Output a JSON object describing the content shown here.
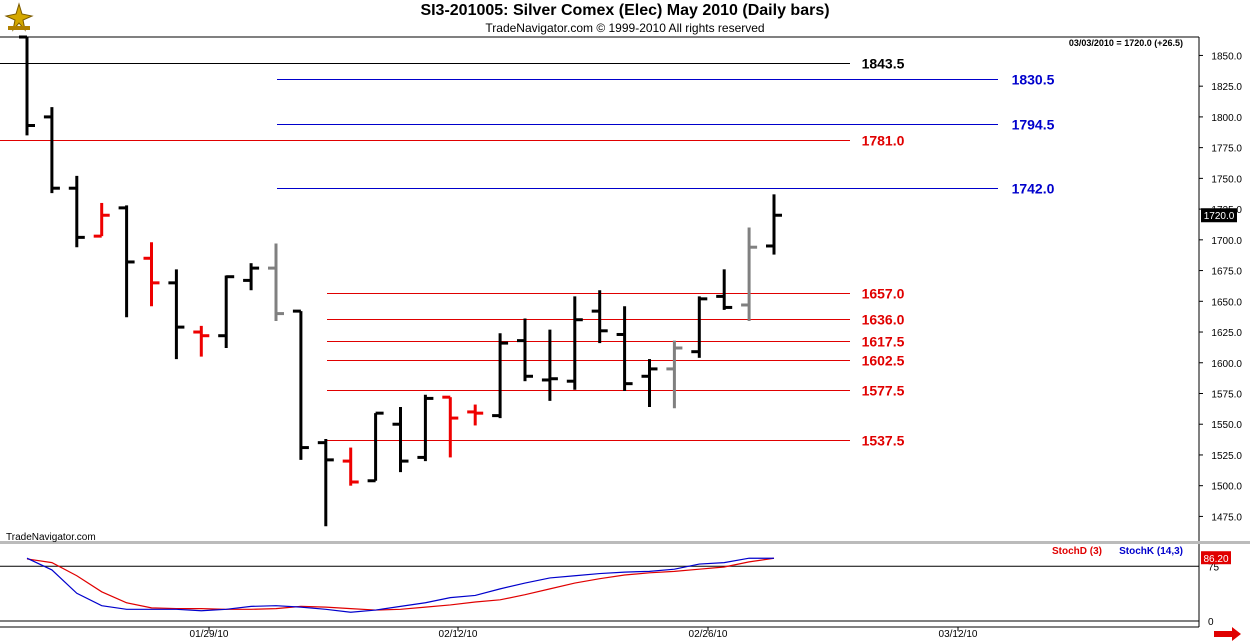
{
  "header": {
    "title": "SI3-201005:  Silver Comex (Elec) May 2010  (Daily bars)",
    "subtitle": "TradeNavigator.com © 1999-2010 All rights reserved"
  },
  "colors": {
    "up": "#000000",
    "down": "#ee0000",
    "neutral": "#808080",
    "support_line": "#e00000",
    "resistance_line": "#0000cc",
    "stochD": "#e00000",
    "stochK": "#0000cc",
    "price_marker_bg": "#000000",
    "stoch_marker_bg": "#e00000"
  },
  "chart_data": [
    {
      "type": "ohlc",
      "price_readout": "03/03/2010 = 1720.0 (+26.5)",
      "watermark": "TradeNavigator.com",
      "ylim": [
        1455,
        1865
      ],
      "y_ticks": [
        1475,
        1500,
        1525,
        1550,
        1575,
        1600,
        1625,
        1650,
        1675,
        1700,
        1725,
        1750,
        1775,
        1800,
        1825,
        1850
      ],
      "y_tick_labels": [
        "1475.0",
        "1500.0",
        "1525.0",
        "1550.0",
        "1575.0",
        "1600.0",
        "1625.0",
        "1650.0",
        "1675.0",
        "1700.0",
        "1725.0",
        "1750.0",
        "1775.0",
        "1800.0",
        "1825.0",
        "1850.0"
      ],
      "last_price_label": "1720.0",
      "x_labels": [
        "01/29/10",
        "02/12/10",
        "02/26/10",
        "03/12/10"
      ],
      "bars": [
        {
          "o": 1865,
          "h": 1865,
          "l": 1785,
          "c": 1793,
          "color": "up"
        },
        {
          "o": 1800,
          "h": 1808,
          "l": 1738,
          "c": 1742,
          "color": "up"
        },
        {
          "o": 1742,
          "h": 1752,
          "l": 1694,
          "c": 1702,
          "color": "up"
        },
        {
          "o": 1703,
          "h": 1730,
          "l": 1703,
          "c": 1720,
          "color": "down"
        },
        {
          "o": 1726,
          "h": 1728,
          "l": 1637,
          "c": 1682,
          "color": "up"
        },
        {
          "o": 1685,
          "h": 1698,
          "l": 1646,
          "c": 1665,
          "color": "down"
        },
        {
          "o": 1665,
          "h": 1676,
          "l": 1603,
          "c": 1629,
          "color": "up"
        },
        {
          "o": 1625,
          "h": 1630,
          "l": 1605,
          "c": 1622,
          "color": "down"
        },
        {
          "o": 1622,
          "h": 1671,
          "l": 1612,
          "c": 1670,
          "color": "up"
        },
        {
          "o": 1667,
          "h": 1681,
          "l": 1659,
          "c": 1677,
          "color": "up"
        },
        {
          "o": 1677,
          "h": 1697,
          "l": 1634,
          "c": 1640,
          "color": "neutral"
        },
        {
          "o": 1642,
          "h": 1642,
          "l": 1521,
          "c": 1531,
          "color": "up"
        },
        {
          "o": 1535,
          "h": 1538,
          "l": 1467,
          "c": 1521,
          "color": "up"
        },
        {
          "o": 1520,
          "h": 1531,
          "l": 1500,
          "c": 1503,
          "color": "down"
        },
        {
          "o": 1504,
          "h": 1559,
          "l": 1504,
          "c": 1559,
          "color": "up"
        },
        {
          "o": 1550,
          "h": 1564,
          "l": 1511,
          "c": 1520,
          "color": "up"
        },
        {
          "o": 1523,
          "h": 1574,
          "l": 1520,
          "c": 1571,
          "color": "up"
        },
        {
          "o": 1572,
          "h": 1572,
          "l": 1523,
          "c": 1555,
          "color": "down"
        },
        {
          "o": 1560,
          "h": 1566,
          "l": 1549,
          "c": 1559,
          "color": "down"
        },
        {
          "o": 1557,
          "h": 1624,
          "l": 1555,
          "c": 1616,
          "color": "up"
        },
        {
          "o": 1618,
          "h": 1636,
          "l": 1585,
          "c": 1589,
          "color": "up"
        },
        {
          "o": 1586,
          "h": 1627,
          "l": 1569,
          "c": 1587,
          "color": "up"
        },
        {
          "o": 1585,
          "h": 1654,
          "l": 1578,
          "c": 1635,
          "color": "up"
        },
        {
          "o": 1642,
          "h": 1659,
          "l": 1616,
          "c": 1626,
          "color": "up"
        },
        {
          "o": 1623,
          "h": 1646,
          "l": 1577,
          "c": 1583,
          "color": "up"
        },
        {
          "o": 1589,
          "h": 1603,
          "l": 1564,
          "c": 1595,
          "color": "up"
        },
        {
          "o": 1595,
          "h": 1618,
          "l": 1563,
          "c": 1612,
          "color": "neutral"
        },
        {
          "o": 1609,
          "h": 1654,
          "l": 1604,
          "c": 1652,
          "color": "up"
        },
        {
          "o": 1654,
          "h": 1676,
          "l": 1643,
          "c": 1645,
          "color": "up"
        },
        {
          "o": 1647,
          "h": 1710,
          "l": 1634,
          "c": 1694,
          "color": "neutral"
        },
        {
          "o": 1695,
          "h": 1737,
          "l": 1688,
          "c": 1720,
          "color": "up"
        }
      ],
      "support_levels": [
        {
          "value": 1657.0,
          "label": "1657.0"
        },
        {
          "value": 1636.0,
          "label": "1636.0"
        },
        {
          "value": 1617.5,
          "label": "1617.5"
        },
        {
          "value": 1602.5,
          "label": "1602.5"
        },
        {
          "value": 1577.5,
          "label": "1577.5"
        },
        {
          "value": 1537.5,
          "label": "1537.5"
        }
      ],
      "resistance_levels": [
        {
          "value": 1830.5,
          "label": "1830.5"
        },
        {
          "value": 1794.5,
          "label": "1794.5"
        },
        {
          "value": 1742.0,
          "label": "1742.0"
        }
      ],
      "red_levels": [
        {
          "value": 1781.0,
          "label": "1781.0"
        }
      ],
      "black_levels": [
        {
          "value": 1843.5,
          "label": "1843.5"
        }
      ]
    },
    {
      "type": "line",
      "ylim": [
        0,
        100
      ],
      "y_ticks": [
        0,
        75
      ],
      "y_tick_labels": [
        "0",
        "75"
      ],
      "last_value_label": "86.20",
      "series": [
        {
          "name": "StochD (3)",
          "color": "stochD",
          "values": [
            85,
            80,
            62,
            40,
            25,
            18,
            17,
            17,
            16,
            16,
            17,
            20,
            19,
            17,
            15,
            16,
            19,
            22,
            26,
            29,
            36,
            44,
            52,
            58,
            63,
            66,
            68,
            71,
            74,
            81,
            86
          ]
        },
        {
          "name": "StochK (14,3)",
          "color": "stochK",
          "values": [
            86,
            70,
            38,
            21,
            16,
            16,
            16,
            14,
            16,
            20,
            21,
            19,
            16,
            12,
            15,
            20,
            25,
            32,
            35,
            44,
            52,
            59,
            62,
            65,
            67,
            68,
            71,
            78,
            80,
            86,
            86
          ]
        }
      ]
    }
  ]
}
